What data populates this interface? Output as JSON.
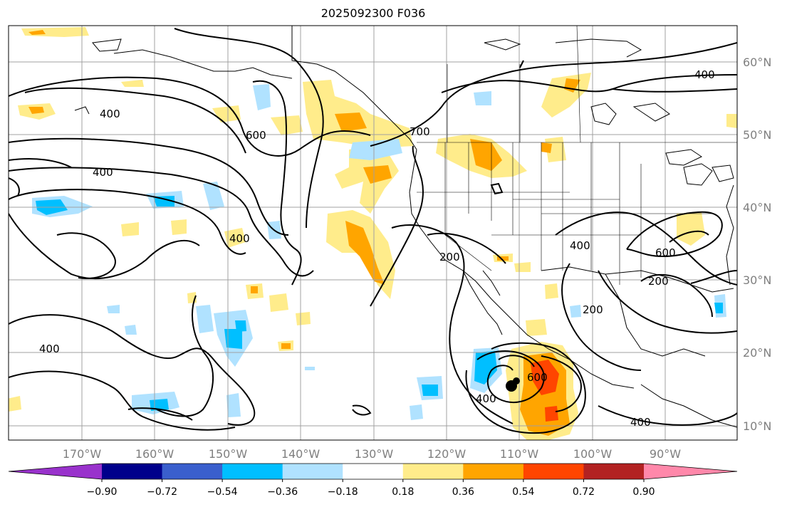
{
  "title": "2025092300 F036",
  "lat_labels": [
    "60°N",
    "50°N",
    "40°N",
    "30°N",
    "20°N",
    "10°N"
  ],
  "lon_labels": [
    "170°W",
    "160°W",
    "150°W",
    "140°W",
    "130°W",
    "120°W",
    "110°W",
    "100°W",
    "90°W"
  ],
  "colorbar": {
    "colors": [
      "#9932cc",
      "#00008b",
      "#3a5fcd",
      "#00bfff",
      "#b0e2ff",
      "#ffffff",
      "#ffec8b",
      "#ffa500",
      "#ff4500",
      "#b22222",
      "#ff88aa"
    ],
    "ticks": [
      "−0.90",
      "−0.72",
      "−0.54",
      "−0.36",
      "−0.18",
      "0.18",
      "0.36",
      "0.54",
      "0.72",
      "0.90"
    ]
  },
  "contour_labels": [
    "400",
    "600",
    "400",
    "700",
    "400",
    "200",
    "400",
    "600",
    "200",
    "400",
    "200",
    "400",
    "600",
    "400",
    "400"
  ],
  "colors": {
    "contour": "#000000",
    "grid": "#a0a0a0",
    "coast": "#000000",
    "pos1": "#ffec8b",
    "pos2": "#ffa500",
    "pos3": "#ff4500",
    "neg1": "#b0e2ff",
    "neg2": "#00bfff"
  }
}
